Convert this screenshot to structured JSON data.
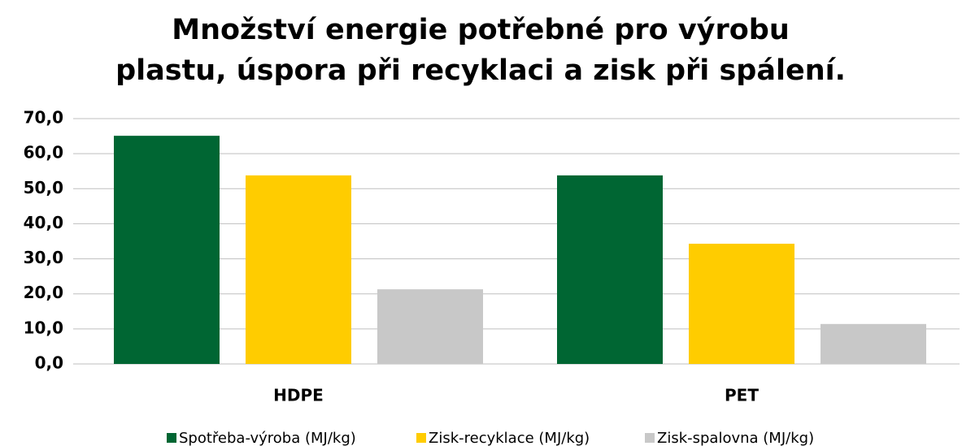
{
  "chart_data": {
    "type": "bar",
    "title": "Množství energie potřebné pro výrobu plastu, úspora při recyklaci a zisk při spálení.",
    "categories": [
      "HDPE",
      "PET"
    ],
    "series": [
      {
        "name": "Spotřeba-výroba (MJ/kg)",
        "color": "#006633",
        "values": [
          65.1,
          53.8
        ]
      },
      {
        "name": "Zisk-recyklace (MJ/kg)",
        "color": "#ffcc00",
        "values": [
          53.8,
          34.3
        ]
      },
      {
        "name": "Zisk-spalovna (MJ/kg)",
        "color": "#c8c8c8",
        "values": [
          21.3,
          11.4
        ]
      }
    ],
    "ylim": [
      0,
      70
    ],
    "yticks": [
      {
        "value": 0,
        "label": "0,0"
      },
      {
        "value": 10,
        "label": "10,0"
      },
      {
        "value": 20,
        "label": "20,0"
      },
      {
        "value": 30,
        "label": "30,0"
      },
      {
        "value": 40,
        "label": "40,0"
      },
      {
        "value": 50,
        "label": "50,0"
      },
      {
        "value": 60,
        "label": "60,0"
      },
      {
        "value": 70,
        "label": "70,0"
      }
    ],
    "grid": true,
    "legend": "bottom"
  }
}
